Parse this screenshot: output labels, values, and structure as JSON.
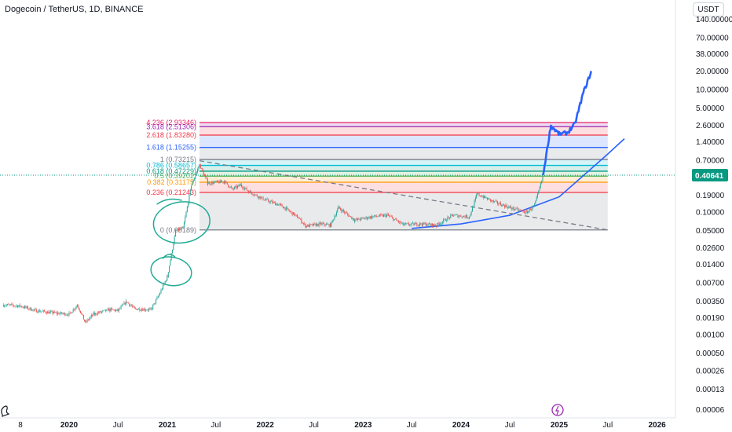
{
  "header": {
    "symbol_title": "Dogecoin / TetherUS, 1D, BINANCE",
    "currency_button": "USDT"
  },
  "current_price": "0.40641",
  "colors": {
    "up_candle": "#26a69a",
    "down_candle": "#ef5350",
    "trend_line": "#2962ff",
    "annotation": "#22ab94",
    "current_price": "#089981"
  },
  "chart_data": {
    "type": "candlestick",
    "scale": "log",
    "ylim": [
      6e-05,
      140
    ],
    "y_ticks": [
      "140.00000",
      "70.00000",
      "38.00000",
      "20.00000",
      "10.00000",
      "5.00000",
      "2.60000",
      "1.40000",
      "0.70000",
      "0.40641",
      "0.19000",
      "0.10000",
      "0.05000",
      "0.02600",
      "0.01400",
      "0.00700",
      "0.00350",
      "0.00190",
      "0.00100",
      "0.00050",
      "0.00026",
      "0.00013",
      "0.00006"
    ],
    "x_ticks": [
      {
        "label": "8",
        "date": "2019-05"
      },
      {
        "label": "2020",
        "date": "2020-01",
        "bold": true
      },
      {
        "label": "Jul",
        "date": "2020-07"
      },
      {
        "label": "2021",
        "date": "2021-01",
        "bold": true
      },
      {
        "label": "Jul",
        "date": "2021-07"
      },
      {
        "label": "2022",
        "date": "2022-01",
        "bold": true
      },
      {
        "label": "Jul",
        "date": "2022-07"
      },
      {
        "label": "2023",
        "date": "2023-01",
        "bold": true
      },
      {
        "label": "Jul",
        "date": "2023-07"
      },
      {
        "label": "2024",
        "date": "2024-01",
        "bold": true
      },
      {
        "label": "Jul",
        "date": "2024-07"
      },
      {
        "label": "2025",
        "date": "2025-01",
        "bold": true
      },
      {
        "label": "Jul",
        "date": "2025-07"
      },
      {
        "label": "2026",
        "date": "2026-01",
        "bold": true
      }
    ],
    "fib_levels": [
      {
        "label": "4.236 (2.93346)",
        "value": 2.93346,
        "color": "#e91e63"
      },
      {
        "label": "3.618 (2.51306)",
        "value": 2.51306,
        "color": "#9c27b0"
      },
      {
        "label": "2.618 (1.83280)",
        "value": 1.8328,
        "color": "#f23645"
      },
      {
        "label": "1.618 (1.15255)",
        "value": 1.15255,
        "color": "#2962ff"
      },
      {
        "label": "1 (0.73215)",
        "value": 0.73215,
        "color": "#787b86"
      },
      {
        "label": "0.786 (0.58657)",
        "value": 0.58657,
        "color": "#00bcd4"
      },
      {
        "label": "0.618 (0.47229)",
        "value": 0.47229,
        "color": "#089981"
      },
      {
        "label": "0.5 (0.39202)",
        "value": 0.39202,
        "color": "#4caf50"
      },
      {
        "label": "0.382 (0.31175)",
        "value": 0.31175,
        "color": "#ff9800"
      },
      {
        "label": "0.236 (0.21243)",
        "value": 0.21243,
        "color": "#f23645"
      },
      {
        "label": "0 (0.05189)",
        "value": 0.05189,
        "color": "#787b86"
      }
    ],
    "fib_range": {
      "start": "2021-05",
      "end": "2025-07"
    },
    "price_path": [
      [
        "2019-05",
        0.0031
      ],
      [
        "2019-07",
        0.003
      ],
      [
        "2019-09",
        0.0025
      ],
      [
        "2019-11",
        0.0023
      ],
      [
        "2020-01",
        0.0022
      ],
      [
        "2020-02",
        0.0031
      ],
      [
        "2020-03",
        0.0016
      ],
      [
        "2020-04",
        0.0022
      ],
      [
        "2020-06",
        0.0026
      ],
      [
        "2020-07",
        0.0025
      ],
      [
        "2020-08",
        0.0035
      ],
      [
        "2020-09",
        0.0027
      ],
      [
        "2020-11",
        0.0026
      ],
      [
        "2020-12",
        0.0045
      ],
      [
        "2021-01",
        0.009
      ],
      [
        "2021-02",
        0.05
      ],
      [
        "2021-03",
        0.055
      ],
      [
        "2021-04",
        0.28
      ],
      [
        "2021-05",
        0.6
      ],
      [
        "2021-06",
        0.3
      ],
      [
        "2021-08",
        0.32
      ],
      [
        "2021-09",
        0.24
      ],
      [
        "2021-10",
        0.28
      ],
      [
        "2021-11",
        0.22
      ],
      [
        "2022-01",
        0.16
      ],
      [
        "2022-03",
        0.13
      ],
      [
        "2022-05",
        0.085
      ],
      [
        "2022-06",
        0.06
      ],
      [
        "2022-08",
        0.065
      ],
      [
        "2022-09",
        0.062
      ],
      [
        "2022-10",
        0.12
      ],
      [
        "2022-12",
        0.075
      ],
      [
        "2023-02",
        0.085
      ],
      [
        "2023-04",
        0.09
      ],
      [
        "2023-06",
        0.063
      ],
      [
        "2023-08",
        0.065
      ],
      [
        "2023-10",
        0.062
      ],
      [
        "2023-12",
        0.09
      ],
      [
        "2024-02",
        0.085
      ],
      [
        "2024-03",
        0.2
      ],
      [
        "2024-05",
        0.15
      ],
      [
        "2024-07",
        0.12
      ],
      [
        "2024-09",
        0.1
      ],
      [
        "2024-10",
        0.13
      ],
      [
        "2024-11",
        0.38
      ]
    ],
    "forecast_path": [
      [
        "2024-11",
        0.38
      ],
      [
        "2024-12",
        2.6
      ],
      [
        "2025-01",
        1.9
      ],
      [
        "2025-02",
        2.0
      ],
      [
        "2025-03",
        2.8
      ],
      [
        "2025-04",
        9.0
      ],
      [
        "2025-05",
        20.0
      ]
    ],
    "curve_path": [
      [
        "2023-07",
        0.055
      ],
      [
        "2024-01",
        0.065
      ],
      [
        "2024-07",
        0.09
      ],
      [
        "2025-01",
        0.18
      ],
      [
        "2025-04",
        0.4
      ],
      [
        "2025-07",
        0.9
      ],
      [
        "2025-09",
        1.6
      ]
    ],
    "dashed_trend": {
      "start": [
        "2021-05",
        0.7
      ],
      "end": [
        "2025-07",
        0.052
      ]
    },
    "annotations": [
      {
        "type": "ellipse",
        "center": [
          "2021-02",
          0.065
        ]
      },
      {
        "type": "ellipse",
        "center": [
          "2021-01",
          0.011
        ]
      }
    ]
  }
}
